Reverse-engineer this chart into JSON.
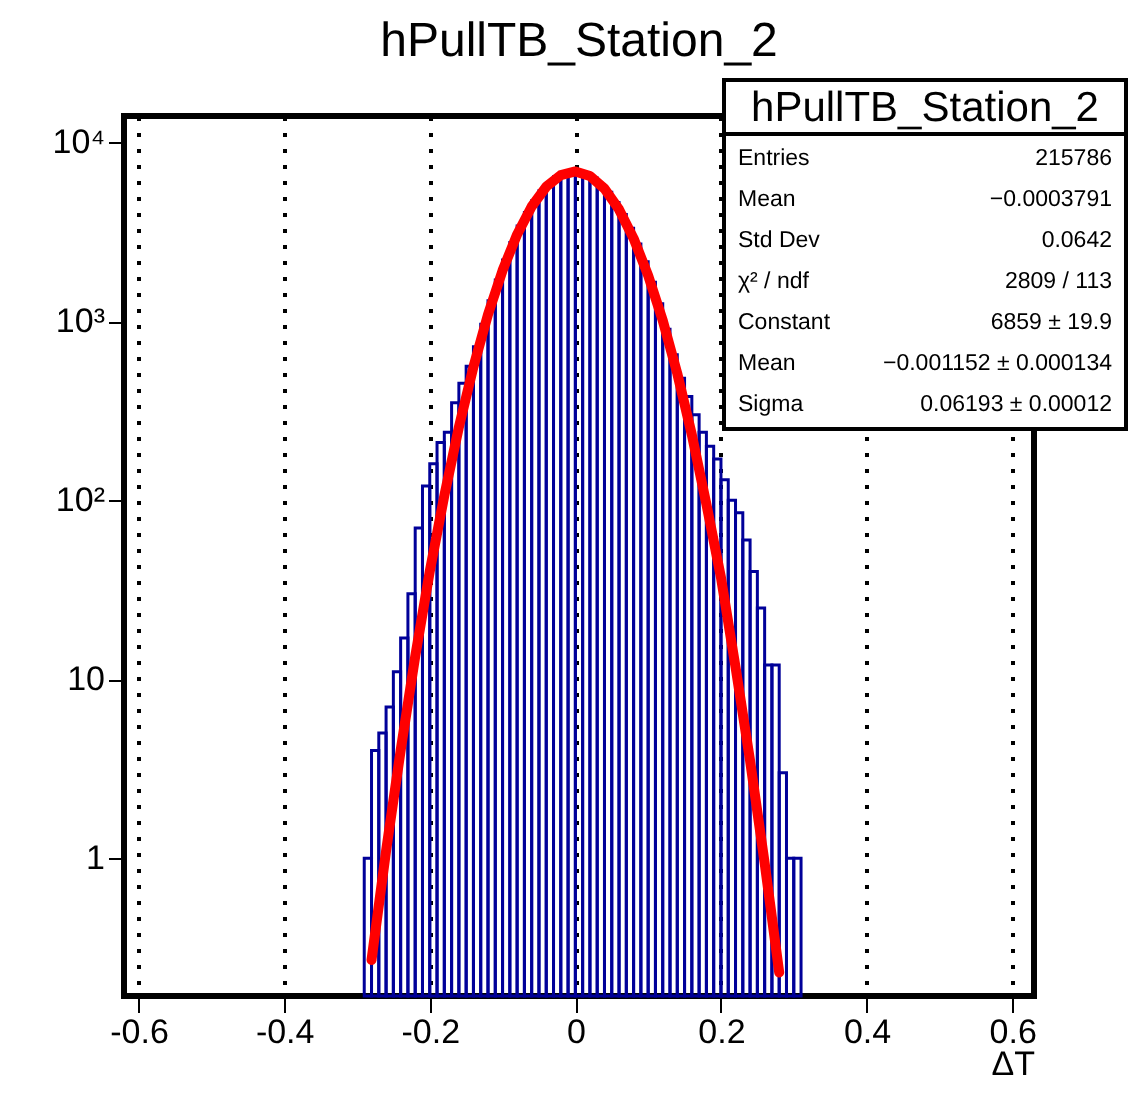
{
  "chart_data": {
    "type": "histogram",
    "title": "hPullTB_Station_2",
    "xlabel": "ΔT",
    "bins": [
      -0.29,
      -0.28,
      -0.27,
      -0.26,
      -0.25,
      -0.24,
      -0.23,
      -0.22,
      -0.21,
      -0.2,
      -0.19,
      -0.18,
      -0.17,
      -0.16,
      -0.15,
      -0.14,
      -0.13,
      -0.12,
      -0.11,
      -0.1,
      -0.09,
      -0.08,
      -0.07,
      -0.06,
      -0.05,
      -0.04,
      -0.03,
      -0.02,
      -0.01,
      0,
      0.01,
      0.02,
      0.03,
      0.04,
      0.05,
      0.06,
      0.07,
      0.08,
      0.09,
      0.1,
      0.11,
      0.12,
      0.13,
      0.14,
      0.15,
      0.16,
      0.17,
      0.18,
      0.19,
      0.2,
      0.21,
      0.22,
      0.23,
      0.24,
      0.25,
      0.26,
      0.27,
      0.28,
      0.29,
      0.3,
      0.31
    ],
    "series": [
      {
        "color": "#000099",
        "values": [
          1,
          4,
          5,
          7,
          11,
          17,
          30,
          70,
          120,
          160,
          210,
          240,
          350,
          450,
          560,
          720,
          960,
          1300,
          1700,
          2200,
          2750,
          3400,
          4050,
          4700,
          5350,
          5900,
          6400,
          6700,
          6900,
          6900,
          6650,
          6300,
          5800,
          5250,
          4600,
          3950,
          3300,
          2700,
          2150,
          1650,
          1250,
          900,
          650,
          480,
          380,
          300,
          240,
          200,
          170,
          130,
          100,
          85,
          60,
          40,
          25,
          12,
          12,
          3,
          1,
          1
        ]
      },
      {
        "type": "line",
        "color": "#ff0000",
        "x": [
          -0.28,
          -0.26,
          -0.24,
          -0.22,
          -0.2,
          -0.18,
          -0.16,
          -0.14,
          -0.12,
          -0.1,
          -0.08,
          -0.06,
          -0.04,
          -0.02,
          0,
          0.02,
          0.04,
          0.06,
          0.08,
          0.1,
          0.12,
          0.14,
          0.16,
          0.18,
          0.2,
          0.22,
          0.24,
          0.26,
          0.28
        ],
        "values": [
          0.27,
          1.1,
          4,
          13.4,
          40,
          106,
          256,
          556,
          1090,
          1920,
          3050,
          4370,
          5640,
          6550,
          6860,
          6470,
          5500,
          4210,
          2900,
          1800,
          1010,
          510,
          232,
          95,
          37,
          11.7,
          3.5,
          0.94,
          0.23
        ]
      }
    ],
    "xlim": [
      -0.62,
      0.63
    ],
    "xticks": [
      -0.6,
      -0.4,
      -0.2,
      0,
      0.2,
      0.4,
      0.6
    ],
    "ylim": [
      0.17,
      14000
    ],
    "yticks": [
      1,
      10,
      {
        "value": 100,
        "label": "10²"
      },
      {
        "value": 1000,
        "label": "10³"
      },
      {
        "value": 10000,
        "label": "10⁴"
      }
    ],
    "log": "y",
    "grid": "x",
    "marker": "none",
    "annotations": [
      "hPullTB_Station_2",
      "Entries",
      "215786",
      "Mean",
      "−0.0003791",
      "Std Dev",
      "0.0642",
      "χ² / ndf",
      "2809 / 113",
      "Constant",
      "6859 ± 19.9",
      "Mean",
      "−0.001152 ± 0.000134",
      "Sigma",
      "0.06193 ± 0.00012"
    ]
  }
}
